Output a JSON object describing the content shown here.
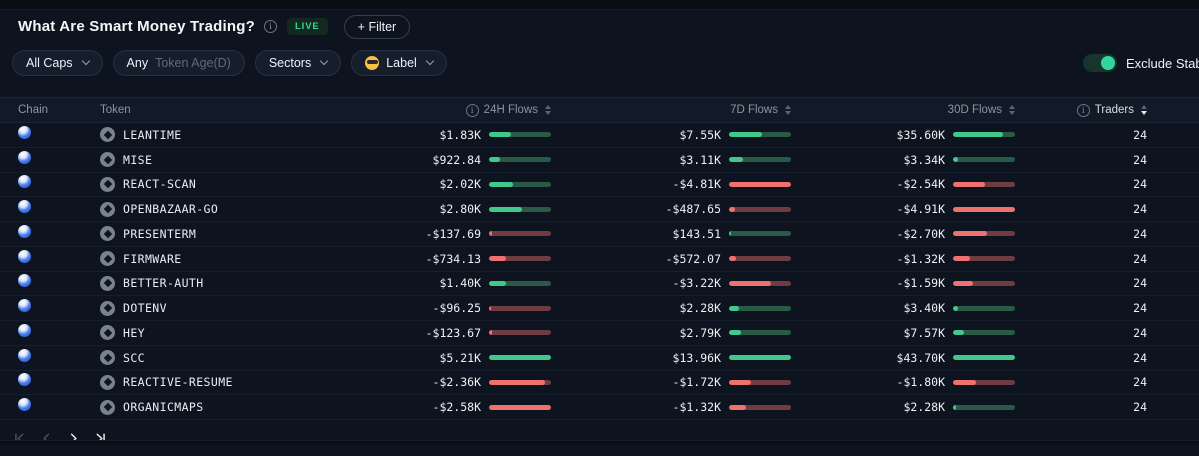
{
  "header": {
    "title": "What Are Smart Money Trading?",
    "live_badge": "LIVE",
    "filter_button": "+ Filter",
    "info_icon": "info-circle"
  },
  "filters": {
    "market_cap": "All Caps",
    "token_age_value": "Any",
    "token_age_label": "Token Age(D)",
    "sectors": "Sectors",
    "label": "Label",
    "label_emoji": "smiley-sunglasses",
    "exclude_toggle_label": "Exclude Stabl",
    "exclude_toggle_on": true
  },
  "table": {
    "headers": {
      "chain": "Chain",
      "token": "Token",
      "h24": "24H Flows",
      "d7": "7D Flows",
      "d30": "30D Flows",
      "traders": "Traders"
    },
    "sorted_by": "traders",
    "rows": [
      {
        "token": "LEANTIME",
        "h24": "$1.83K",
        "d7": "$7.55K",
        "d30": "$35.60K",
        "traders": "24"
      },
      {
        "token": "MISE",
        "h24": "$922.84",
        "d7": "$3.11K",
        "d30": "$3.34K",
        "traders": "24"
      },
      {
        "token": "REACT-SCAN",
        "h24": "$2.02K",
        "d7": "-$4.81K",
        "d30": "-$2.54K",
        "traders": "24"
      },
      {
        "token": "OPENBAZAAR-GO",
        "h24": "$2.80K",
        "d7": "-$487.65",
        "d30": "-$4.91K",
        "traders": "24"
      },
      {
        "token": "PRESENTERM",
        "h24": "-$137.69",
        "d7": "$143.51",
        "d30": "-$2.70K",
        "traders": "24"
      },
      {
        "token": "FIRMWARE",
        "h24": "-$734.13",
        "d7": "-$572.07",
        "d30": "-$1.32K",
        "traders": "24"
      },
      {
        "token": "BETTER-AUTH",
        "h24": "$1.40K",
        "d7": "-$3.22K",
        "d30": "-$1.59K",
        "traders": "24"
      },
      {
        "token": "DOTENV",
        "h24": "-$96.25",
        "d7": "$2.28K",
        "d30": "$3.40K",
        "traders": "24"
      },
      {
        "token": "HEY",
        "h24": "-$123.67",
        "d7": "$2.79K",
        "d30": "$7.57K",
        "traders": "24"
      },
      {
        "token": "SCC",
        "h24": "$5.21K",
        "d7": "$13.96K",
        "d30": "$43.70K",
        "traders": "24"
      },
      {
        "token": "REACTIVE-RESUME",
        "h24": "-$2.36K",
        "d7": "-$1.72K",
        "d30": "-$1.80K",
        "traders": "24"
      },
      {
        "token": "ORGANICMAPS",
        "h24": "-$2.58K",
        "d7": "-$1.32K",
        "d30": "$2.28K",
        "traders": "24"
      }
    ]
  },
  "pagination": {
    "buttons": [
      {
        "name": "first-page",
        "enabled": false
      },
      {
        "name": "prev-page",
        "enabled": false
      },
      {
        "name": "next-page",
        "enabled": true
      },
      {
        "name": "last-page",
        "enabled": true
      }
    ]
  },
  "colors": {
    "accent_green": "#31d79c",
    "bar_positive_fill": "#41c98c",
    "bar_positive_track": "#2a5947",
    "bar_negative_fill": "#ee7170",
    "bar_negative_track": "#6d3d43",
    "chain_icon_blue": "#4a7df0"
  }
}
